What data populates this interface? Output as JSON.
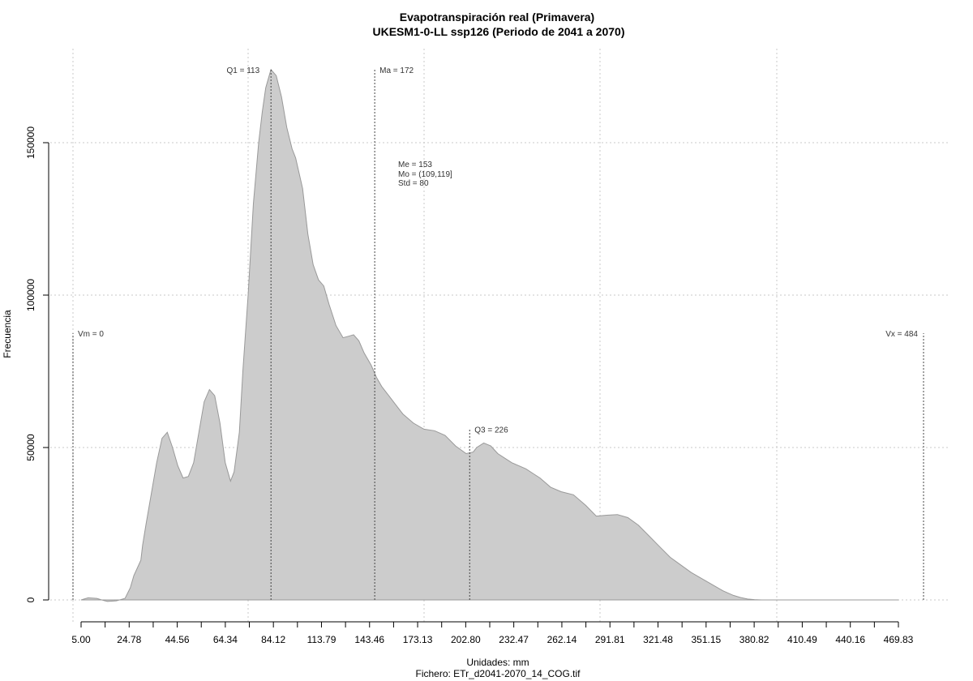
{
  "chart_data": {
    "type": "area",
    "title": "Evapotranspiración real (Primavera)",
    "subtitle": "UKESM1-0-LL ssp126 (Periodo de 2041 a 2070)",
    "xlabel": "Unidades: mm",
    "caption": "Fichero: ETr_d2041-2070_14_COG.tif",
    "ylabel": "Frecuencia",
    "xlim": [
      5.0,
      469.83
    ],
    "ylim": [
      0,
      150000
    ],
    "x_ticks": [
      "5.00",
      "24.78",
      "44.56",
      "64.34",
      "84.12",
      "113.79",
      "143.46",
      "173.13",
      "202.80",
      "232.47",
      "262.14",
      "291.81",
      "321.48",
      "351.15",
      "380.82",
      "410.49",
      "440.16",
      "469.83"
    ],
    "y_ticks": [
      "0",
      "50000",
      "100000",
      "150000"
    ],
    "grid": true,
    "fill_color": "#cccccc",
    "line_color": "#999999",
    "series": [
      {
        "x": [
          5,
          9,
          14,
          18,
          20,
          25,
          30,
          33,
          35,
          39,
          40,
          42,
          45,
          48,
          51,
          54,
          57,
          60,
          63,
          66,
          69,
          72,
          75,
          78,
          81,
          84,
          87,
          90,
          92,
          95,
          97,
          100,
          103,
          106,
          108,
          110,
          112,
          113,
          116,
          119,
          122,
          125,
          127,
          131,
          134,
          137,
          140,
          143,
          146,
          150,
          154,
          157,
          160,
          163,
          166,
          170,
          173,
          176,
          180,
          184,
          188,
          194,
          200,
          206,
          212,
          218,
          224,
          228,
          230,
          234,
          238,
          242,
          246,
          250,
          254,
          258,
          262,
          266,
          272,
          278,
          285,
          292,
          298,
          304,
          310,
          316,
          322,
          328,
          334,
          340,
          346,
          352,
          358,
          364,
          370,
          376,
          380,
          384,
          388,
          392,
          396,
          400,
          404,
          410,
          420,
          440,
          460,
          470
        ],
        "y": [
          0,
          700,
          500,
          -200,
          -500,
          -300,
          500,
          4000,
          8000,
          13000,
          18000,
          25000,
          35000,
          45000,
          53000,
          55000,
          50000,
          44000,
          40000,
          40500,
          45000,
          55000,
          65000,
          69000,
          67000,
          58000,
          45000,
          39000,
          42000,
          55000,
          75000,
          100000,
          130000,
          150000,
          160000,
          168000,
          172000,
          174000,
          172000,
          165000,
          155000,
          148000,
          145000,
          135000,
          120000,
          110000,
          105000,
          103000,
          97000,
          90000,
          86000,
          86500,
          87000,
          85000,
          81000,
          77000,
          73000,
          70000,
          67000,
          64000,
          61000,
          58000,
          56000,
          55500,
          54000,
          50500,
          48000,
          48500,
          50000,
          51500,
          50500,
          48000,
          46500,
          45000,
          44000,
          43000,
          41500,
          40000,
          37000,
          35500,
          34500,
          31000,
          27500,
          27800,
          28000,
          27000,
          24500,
          21000,
          17500,
          14000,
          11500,
          9000,
          7000,
          5000,
          3000,
          1500,
          800,
          300,
          100,
          0,
          0,
          0,
          0,
          0,
          0,
          0,
          0,
          0
        ]
      }
    ],
    "reference_lines": [
      {
        "label": "Vm = 0",
        "x": 0.5,
        "height": 87500
      },
      {
        "label": "Q1 = 113",
        "x": 113,
        "height": 174000
      },
      {
        "label": "Ma = 172",
        "x": 172,
        "height": 174000
      },
      {
        "label": "Q3 = 226",
        "x": 226,
        "height": 56000
      },
      {
        "label": "Vx = 484",
        "x": 484,
        "height": 87500
      }
    ],
    "stats": [
      "Me = 153",
      "Mo = (109,119]",
      "Std = 80"
    ]
  }
}
